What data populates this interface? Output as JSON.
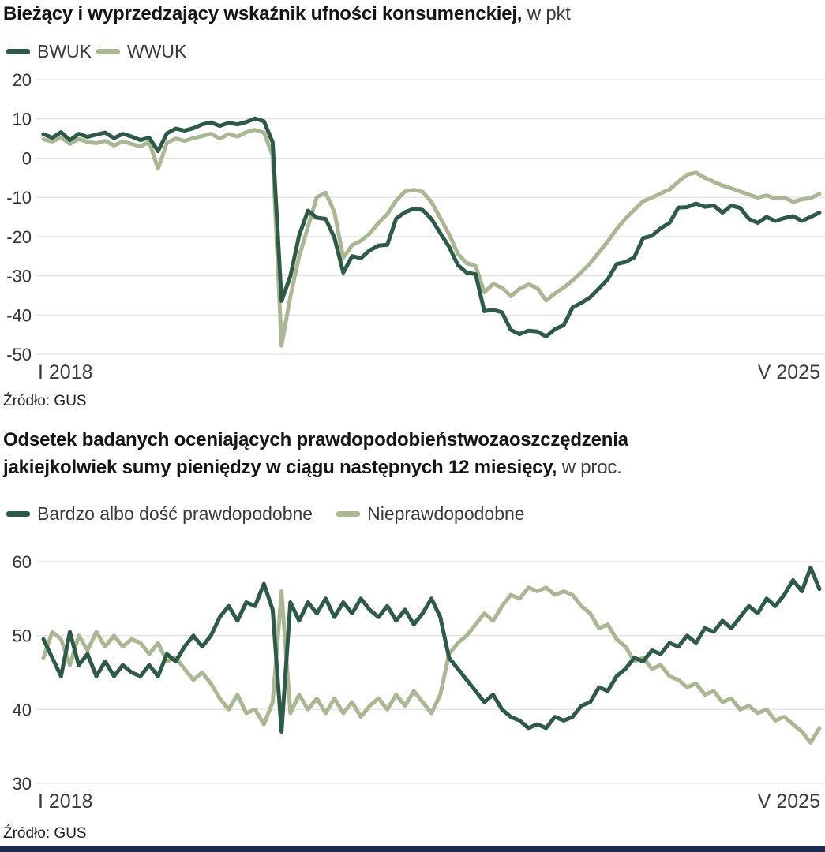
{
  "accent_bar_color": "#1e2a52",
  "chart_data": [
    {
      "type": "line",
      "title": "Bieżący i wyprzedzający wskaźnik ufności konsumenckiej,",
      "unit": "w pkt",
      "x_axis": {
        "start_label": "I 2018",
        "end_label": "V 2025",
        "frequency": "monthly",
        "points": 89
      },
      "source": "Źródło: GUS",
      "ylim": [
        -50,
        20
      ],
      "yticks": [
        20,
        10,
        0,
        -10,
        -20,
        -30,
        -40,
        -50
      ],
      "grid": true,
      "legend_position": "top-left",
      "series": [
        {
          "name": "BWUK",
          "color": "#2e5a48",
          "values": [
            6.1,
            5.2,
            6.6,
            4.6,
            6.2,
            5.4,
            6.0,
            6.5,
            5.1,
            6.2,
            5.5,
            4.6,
            5.2,
            1.8,
            6.3,
            7.5,
            7.0,
            7.6,
            8.6,
            9.1,
            8.2,
            9.0,
            8.6,
            9.2,
            10.1,
            9.4,
            4.0,
            -36.4,
            -30.1,
            -19.7,
            -13.4,
            -15.2,
            -15.5,
            -20.3,
            -29.2,
            -25.0,
            -25.5,
            -23.5,
            -22.3,
            -22.1,
            -15.4,
            -13.8,
            -12.9,
            -13.2,
            -15.5,
            -19.1,
            -22.6,
            -27.3,
            -29.2,
            -29.6,
            -39.0,
            -38.7,
            -39.3,
            -43.8,
            -44.9,
            -44.0,
            -44.2,
            -45.5,
            -43.6,
            -42.6,
            -38.1,
            -36.9,
            -35.5,
            -33.2,
            -30.9,
            -27.0,
            -26.5,
            -25.3,
            -20.4,
            -19.8,
            -17.9,
            -16.5,
            -12.6,
            -12.5,
            -11.6,
            -12.4,
            -12.1,
            -13.9,
            -12.1,
            -12.7,
            -15.5,
            -16.5,
            -15.0,
            -16.0,
            -15.3,
            -14.8,
            -16.0,
            -15.0,
            -13.9
          ]
        },
        {
          "name": "WWUK",
          "color": "#a9b892",
          "values": [
            4.8,
            4.2,
            5.3,
            3.6,
            4.9,
            4.1,
            3.8,
            4.4,
            3.2,
            4.3,
            3.6,
            3.0,
            4.1,
            -2.7,
            3.9,
            5.0,
            4.4,
            5.1,
            5.6,
            6.2,
            5.0,
            6.1,
            5.5,
            6.6,
            7.2,
            6.5,
            0.6,
            -47.8,
            -35.3,
            -25.1,
            -17.5,
            -10.0,
            -8.8,
            -13.8,
            -25.4,
            -22.2,
            -21.1,
            -19.2,
            -16.5,
            -14.3,
            -10.8,
            -8.5,
            -8.1,
            -8.6,
            -11.2,
            -15.3,
            -19.4,
            -24.4,
            -26.8,
            -27.5,
            -34.2,
            -32.1,
            -33.0,
            -35.2,
            -33.3,
            -32.2,
            -33.1,
            -36.3,
            -34.5,
            -33.0,
            -31.2,
            -29.1,
            -26.8,
            -24.0,
            -21.2,
            -18.1,
            -15.4,
            -13.2,
            -11.0,
            -10.1,
            -9.0,
            -8.0,
            -6.0,
            -4.2,
            -3.7,
            -5.0,
            -6.0,
            -7.0,
            -7.7,
            -8.5,
            -9.3,
            -10.1,
            -9.5,
            -10.3,
            -10.0,
            -11.2,
            -10.5,
            -10.2,
            -9.1
          ]
        }
      ]
    },
    {
      "type": "line",
      "title_line1": "Odsetek badanych oceniających prawdopodobieństwozaoszczędzenia",
      "title_line2": "jakiejkolwiek sumy pieniędzy w ciągu następnych 12 miesięcy,",
      "unit": "w proc.",
      "x_axis": {
        "start_label": "I 2018",
        "end_label": "V 2025",
        "frequency": "monthly",
        "points": 89
      },
      "source": "Źródło: GUS",
      "ylim": [
        30,
        60
      ],
      "yticks": [
        60,
        50,
        40,
        30
      ],
      "grid": true,
      "legend_position": "top-left",
      "series": [
        {
          "name": "Bardzo albo dość prawdopodobne",
          "color": "#2e5a48",
          "values": [
            49.5,
            47.0,
            44.5,
            50.5,
            46.0,
            47.5,
            44.5,
            46.5,
            44.5,
            46.0,
            45.0,
            44.5,
            46.0,
            44.5,
            47.5,
            46.5,
            48.5,
            50.0,
            48.5,
            50.0,
            52.5,
            54.0,
            52.0,
            54.5,
            54.0,
            57.0,
            53.5,
            37.0,
            54.5,
            52.0,
            54.5,
            53.0,
            55.0,
            52.5,
            54.5,
            53.0,
            55.0,
            53.5,
            52.5,
            54.0,
            52.0,
            53.5,
            51.5,
            53.0,
            55.0,
            52.5,
            47.0,
            45.5,
            44.0,
            42.5,
            41.0,
            42.0,
            40.0,
            39.0,
            38.5,
            37.5,
            38.0,
            37.5,
            39.0,
            38.5,
            39.0,
            40.5,
            41.0,
            43.0,
            42.5,
            44.5,
            45.5,
            47.0,
            46.5,
            48.0,
            47.5,
            49.0,
            48.5,
            50.0,
            49.0,
            51.0,
            50.5,
            52.0,
            51.0,
            52.5,
            54.0,
            53.0,
            55.0,
            54.0,
            55.5,
            57.5,
            56.0,
            59.2,
            56.3
          ]
        },
        {
          "name": "Nieprawdopodobne",
          "color": "#a9b892",
          "values": [
            47.0,
            50.5,
            49.5,
            46.0,
            50.0,
            48.0,
            50.5,
            48.5,
            50.0,
            48.5,
            49.5,
            49.0,
            47.5,
            49.0,
            46.5,
            47.0,
            45.5,
            44.0,
            45.0,
            43.5,
            41.5,
            40.0,
            42.0,
            39.5,
            40.0,
            38.0,
            41.0,
            56.0,
            39.5,
            42.0,
            40.0,
            41.5,
            39.5,
            41.5,
            39.5,
            41.0,
            39.0,
            40.5,
            41.5,
            40.0,
            42.0,
            40.5,
            42.5,
            41.0,
            39.5,
            42.0,
            47.5,
            49.0,
            50.0,
            51.5,
            53.0,
            52.0,
            54.0,
            55.5,
            55.0,
            56.5,
            56.0,
            56.5,
            55.5,
            56.0,
            55.5,
            54.0,
            53.0,
            51.0,
            51.5,
            49.5,
            48.5,
            46.5,
            47.0,
            45.5,
            46.0,
            44.5,
            44.0,
            43.0,
            43.5,
            42.0,
            42.5,
            41.0,
            41.5,
            40.0,
            40.5,
            39.5,
            40.0,
            38.5,
            39.0,
            38.0,
            37.0,
            35.5,
            37.5
          ]
        }
      ]
    }
  ]
}
